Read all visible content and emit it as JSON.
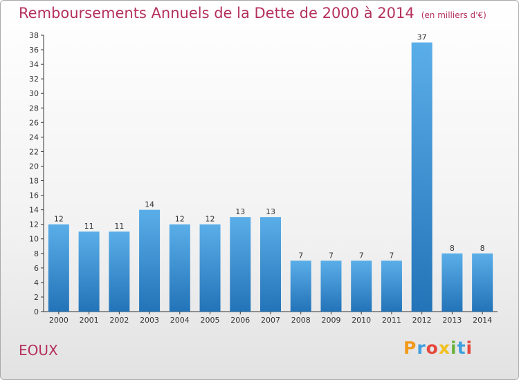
{
  "header": {
    "title": "Remboursements Annuels de la Dette de 2000 à 2014",
    "unit": "(en milliers d'€)"
  },
  "footer": {
    "place": "EOUX",
    "logo": "Proxiti"
  },
  "colors": {
    "title": "#b5305e",
    "bar_light": "#5aaee8",
    "bar_dark": "#2373b8",
    "axis": "#333333"
  },
  "chart_data": {
    "type": "bar",
    "title": "Remboursements Annuels de la Dette de 2000 à 2014",
    "subtitle": "(en milliers d'€)",
    "xlabel": "",
    "ylabel": "",
    "categories": [
      "2000",
      "2001",
      "2002",
      "2003",
      "2004",
      "2005",
      "2006",
      "2007",
      "2008",
      "2009",
      "2010",
      "2011",
      "2012",
      "2013",
      "2014"
    ],
    "values": [
      12,
      11,
      11,
      14,
      12,
      12,
      13,
      13,
      7,
      7,
      7,
      7,
      37,
      8,
      8
    ],
    "ylim": [
      0,
      38
    ],
    "ytick_step": 2,
    "grid": false,
    "legend": "none"
  }
}
